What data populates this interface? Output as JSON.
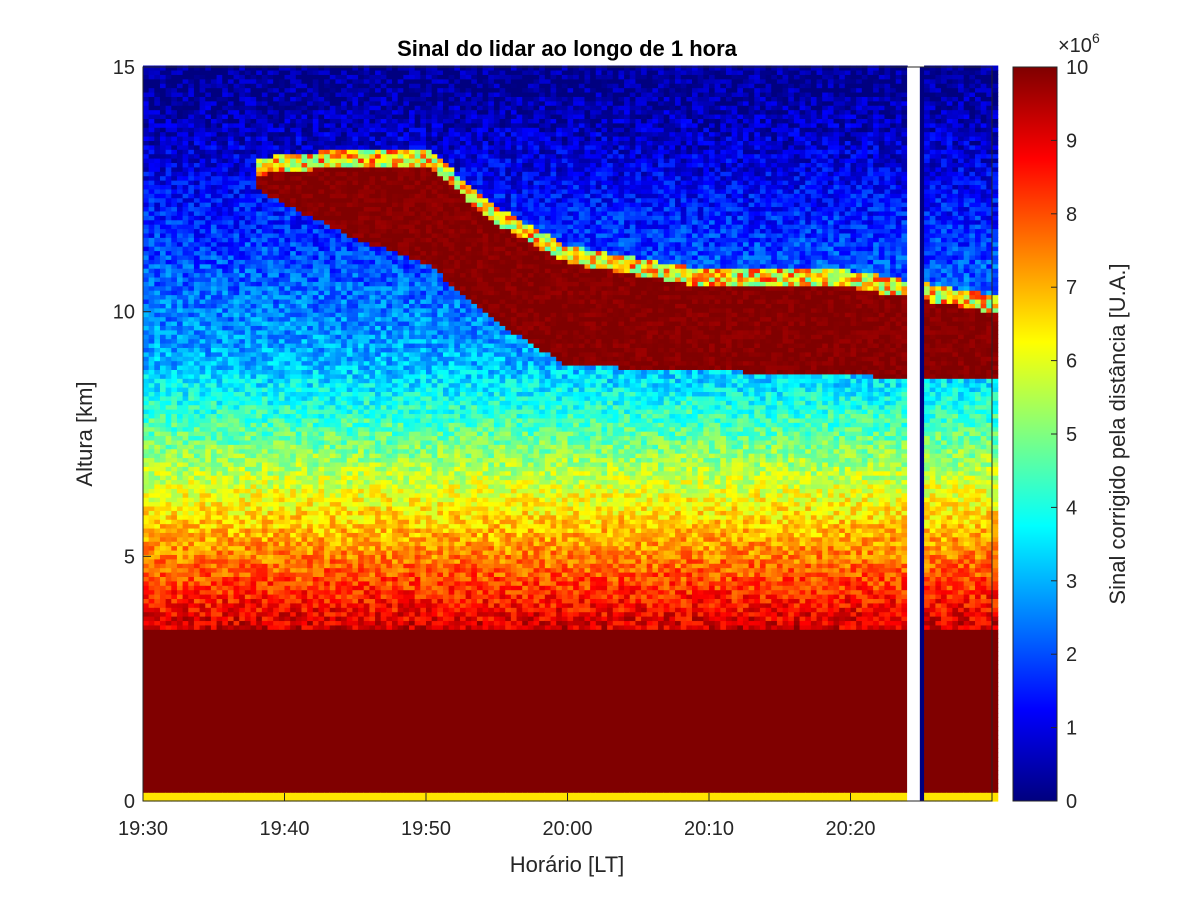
{
  "chart_data": {
    "type": "heatmap",
    "title": "Sinal do lidar ao longo de 1 hora",
    "xlabel": "Horário [LT]",
    "ylabel": "Altura [km]",
    "x_ticks": [
      "19:30",
      "19:40",
      "19:50",
      "20:00",
      "20:10",
      "20:20"
    ],
    "x_range": [
      "19:30",
      "20:30"
    ],
    "y_ticks": [
      "0",
      "5",
      "10",
      "15"
    ],
    "ylim": [
      0,
      15
    ],
    "colorbar": {
      "label": "Sinal corrigido pela distância [U.A.]",
      "exponent_label": "×10",
      "exponent_power": "6",
      "ticks": [
        "0",
        "1",
        "2",
        "3",
        "4",
        "5",
        "6",
        "7",
        "8",
        "9",
        "10"
      ],
      "range": [
        0,
        10
      ],
      "colormap": "jet"
    },
    "missing_data_time": "20:24",
    "layers": {
      "surface_saturated_km": [
        0.2,
        3.5
      ],
      "aerosol_gradient_km": [
        3.5,
        9.0
      ],
      "cloud_top_km_at_times": {
        "19:38": 12.8,
        "19:45": 13.0,
        "19:50": 13.0,
        "19:55": 11.8,
        "20:00": 11.0,
        "20:10": 10.5,
        "20:20": 10.5,
        "20:30": 10.0
      },
      "cloud_base_km_at_times": {
        "19:38": 12.5,
        "19:45": 11.5,
        "19:50": 11.0,
        "19:55": 9.8,
        "20:00": 8.9,
        "20:10": 8.8,
        "20:20": 8.7,
        "20:30": 8.6
      }
    }
  }
}
